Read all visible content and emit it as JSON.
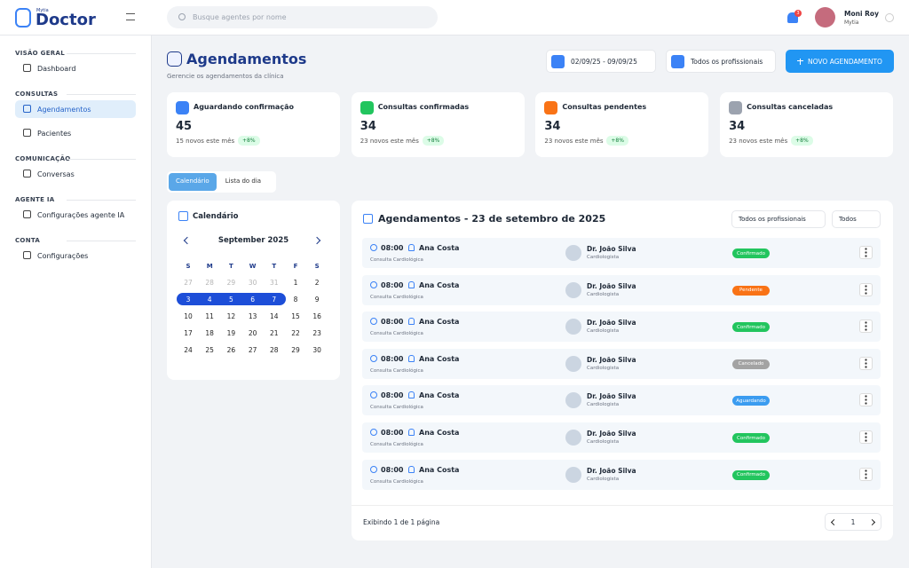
{
  "brand": {
    "small": "Mytia",
    "name": "Doctor"
  },
  "search_placeholder": "Busque agentes por nome",
  "notifications": 3,
  "user": {
    "name": "Moni Roy",
    "org": "Mytia"
  },
  "sidebar": [
    {
      "section": "VISÃO GERAL",
      "items": [
        {
          "label": "Dashboard",
          "active": false
        }
      ]
    },
    {
      "section": "CONSULTAS",
      "items": [
        {
          "label": "Agendamentos",
          "active": true
        },
        {
          "label": "Pacientes",
          "active": false
        }
      ]
    },
    {
      "section": "COMUNICAÇÃO",
      "items": [
        {
          "label": "Conversas",
          "active": false
        }
      ]
    },
    {
      "section": "AGENTE IA",
      "items": [
        {
          "label": "Configurações agente IA",
          "active": false
        }
      ]
    },
    {
      "section": "CONTA",
      "items": [
        {
          "label": "Configurações",
          "active": false
        }
      ]
    }
  ],
  "header": {
    "title": "Agendamentos",
    "subtitle": "Gerencie os agendamentos da clínica"
  },
  "filters": {
    "date_range": "02/09/25 - 09/09/25",
    "professionals": "Todos os profissionais",
    "new_button": "NOVO AGENDAMENTO"
  },
  "stats": [
    {
      "label": "Aguardando confirmação",
      "value": 45,
      "note": "15 novos este mês",
      "badge": "+8%",
      "color": "#3b82f6"
    },
    {
      "label": "Consultas confirmadas",
      "value": 34,
      "note": "23 novos este mês",
      "badge": "+8%",
      "color": "#22c55e"
    },
    {
      "label": "Consultas pendentes",
      "value": 34,
      "note": "23 novos este mês",
      "badge": "+8%",
      "color": "#f97316"
    },
    {
      "label": "Consultas canceladas",
      "value": 34,
      "note": "23 novos este mês",
      "badge": "+8%",
      "color": "#9ca3af"
    }
  ],
  "tabs": [
    {
      "label": "Calendário",
      "active": true
    },
    {
      "label": "Lista do dia",
      "active": false
    }
  ],
  "calendar": {
    "title": "Calendário",
    "month": "September 2025",
    "weekdays": [
      "S",
      "M",
      "T",
      "W",
      "T",
      "F",
      "S"
    ],
    "weeks": [
      [
        {
          "d": 27,
          "muted": true
        },
        {
          "d": 28,
          "muted": true
        },
        {
          "d": 29,
          "muted": true
        },
        {
          "d": 30,
          "muted": true
        },
        {
          "d": 31,
          "muted": true
        },
        {
          "d": 1
        },
        {
          "d": 2
        }
      ],
      [
        {
          "d": 3,
          "selected": true
        },
        {
          "d": 4,
          "selected": true
        },
        {
          "d": 5,
          "selected": true
        },
        {
          "d": 6,
          "selected": true
        },
        {
          "d": 7,
          "selected": true
        },
        {
          "d": 8
        },
        {
          "d": 9
        }
      ],
      [
        {
          "d": 10
        },
        {
          "d": 11
        },
        {
          "d": 12
        },
        {
          "d": 13
        },
        {
          "d": 14
        },
        {
          "d": 15
        },
        {
          "d": 16
        }
      ],
      [
        {
          "d": 17
        },
        {
          "d": 18
        },
        {
          "d": 19
        },
        {
          "d": 20
        },
        {
          "d": 21
        },
        {
          "d": 22
        },
        {
          "d": 23
        }
      ],
      [
        {
          "d": 24
        },
        {
          "d": 25
        },
        {
          "d": 26
        },
        {
          "d": 27
        },
        {
          "d": 28
        },
        {
          "d": 29
        },
        {
          "d": 30
        }
      ]
    ]
  },
  "list": {
    "title": "Agendamentos - 23 de setembro de 2025",
    "filter_professionals": "Todos os profissionais",
    "filter_status": "Todos",
    "rows": [
      {
        "time": "08:00",
        "patient": "Ana Costa",
        "type": "Consulta Cardiológica",
        "doctor": "Dr. João Silva",
        "specialty": "Cardiologista",
        "status": "Confirmado",
        "status_color": "#22c55e"
      },
      {
        "time": "08:00",
        "patient": "Ana Costa",
        "type": "Consulta Cardiológica",
        "doctor": "Dr. João Silva",
        "specialty": "Cardiologista",
        "status": "Pendente",
        "status_color": "#f97316"
      },
      {
        "time": "08:00",
        "patient": "Ana Costa",
        "type": "Consulta Cardiológica",
        "doctor": "Dr. João Silva",
        "specialty": "Cardiologista",
        "status": "Confirmado",
        "status_color": "#22c55e"
      },
      {
        "time": "08:00",
        "patient": "Ana Costa",
        "type": "Consulta Cardiológica",
        "doctor": "Dr. João Silva",
        "specialty": "Cardiologista",
        "status": "Cancelado",
        "status_color": "#a3a3a3"
      },
      {
        "time": "08:00",
        "patient": "Ana Costa",
        "type": "Consulta Cardiológica",
        "doctor": "Dr. João Silva",
        "specialty": "Cardiologista",
        "status": "Aguardando",
        "status_color": "#3b9cf0"
      },
      {
        "time": "08:00",
        "patient": "Ana Costa",
        "type": "Consulta Cardiológica",
        "doctor": "Dr. João Silva",
        "specialty": "Cardiologista",
        "status": "Confirmado",
        "status_color": "#22c55e"
      },
      {
        "time": "08:00",
        "patient": "Ana Costa",
        "type": "Consulta Cardiológica",
        "doctor": "Dr. João Silva",
        "specialty": "Cardiologista",
        "status": "Confirmado",
        "status_color": "#22c55e"
      }
    ],
    "footer": "Exibindo 1 de 1 página",
    "page": 1
  }
}
